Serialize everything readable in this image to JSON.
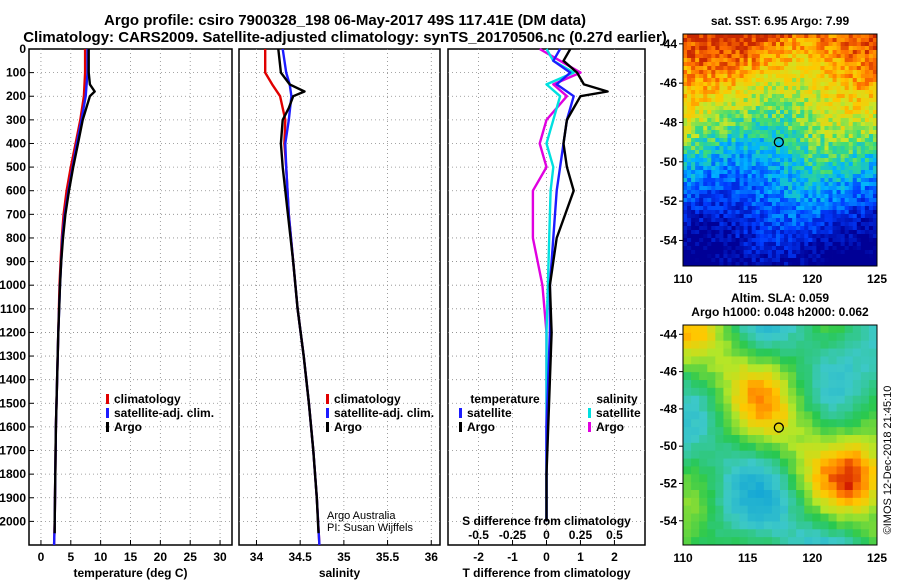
{
  "header": {
    "title_line1": "Argo profile: csiro 7900328_198 06-May-2017 49S 117.41E (DM data)",
    "title_line2": "Climatology: CARS2009. Satellite-adjusted climatology: synTS_20170506.nc (0.27d earlier)"
  },
  "colors": {
    "climatology": "#e00000",
    "satellite": "#1c1cff",
    "argo": "#000000",
    "s_satellite": "#00e0e0",
    "s_argo": "#e000e0"
  },
  "chart_data": [
    {
      "type": "line",
      "name": "temperature",
      "xlabel": "temperature (deg C)",
      "xticks": [
        "0",
        "5",
        "10",
        "15",
        "20",
        "25",
        "30"
      ],
      "xlim": [
        -2,
        32
      ],
      "ylim": [
        0,
        2100
      ],
      "yticks": [
        "0",
        "100",
        "200",
        "300",
        "400",
        "500",
        "600",
        "700",
        "800",
        "900",
        "1000",
        "1100",
        "1200",
        "1300",
        "1400",
        "1500",
        "1600",
        "1700",
        "1800",
        "1900",
        "2000"
      ],
      "legend": [
        "climatology",
        "satellite-adj. clim.",
        "Argo"
      ],
      "series": [
        {
          "name": "climatology",
          "depth": [
            0,
            100,
            200,
            300,
            400,
            500,
            600,
            700,
            800,
            900,
            1000,
            1200,
            1400,
            1600,
            1800,
            2000,
            2100
          ],
          "values": [
            7.4,
            7.4,
            7.2,
            6.6,
            5.8,
            5.0,
            4.3,
            3.8,
            3.5,
            3.3,
            3.1,
            2.9,
            2.7,
            2.5,
            2.4,
            2.3,
            2.2
          ]
        },
        {
          "name": "satellite-adj. clim.",
          "depth": [
            0,
            100,
            200,
            300,
            400,
            500,
            600,
            700,
            800,
            900,
            1000,
            1200,
            1400,
            1600,
            1800,
            2000,
            2100
          ],
          "values": [
            7.8,
            7.8,
            7.5,
            6.8,
            6.0,
            5.3,
            4.6,
            4.0,
            3.6,
            3.4,
            3.2,
            2.9,
            2.7,
            2.5,
            2.4,
            2.3,
            2.2
          ]
        },
        {
          "name": "Argo",
          "depth": [
            0,
            100,
            150,
            180,
            200,
            250,
            300,
            400,
            500,
            600,
            700,
            800,
            900,
            1000,
            1200,
            1400,
            1600,
            1800,
            2000,
            2050
          ],
          "values": [
            8.0,
            8.0,
            8.2,
            9.0,
            8.2,
            7.6,
            7.0,
            6.2,
            5.4,
            4.7,
            4.1,
            3.7,
            3.4,
            3.2,
            2.9,
            2.7,
            2.5,
            2.4,
            2.3,
            2.3
          ]
        }
      ]
    },
    {
      "type": "line",
      "name": "salinity",
      "xlabel": "salinity",
      "xticks": [
        "34",
        "34.5",
        "35",
        "35.5",
        "36"
      ],
      "xlim": [
        33.8,
        36.1
      ],
      "ylim": [
        0,
        2100
      ],
      "legend": [
        "climatology",
        "satellite-adj. clim.",
        "Argo"
      ],
      "credit1": "Argo Australia",
      "credit2": "PI: Susan Wijffels",
      "series": [
        {
          "name": "climatology",
          "depth": [
            0,
            100,
            150,
            200,
            300,
            400,
            500,
            700,
            900,
            1100,
            1300,
            1500,
            1700,
            1900,
            2100
          ],
          "values": [
            34.1,
            34.1,
            34.18,
            34.27,
            34.33,
            34.32,
            34.34,
            34.37,
            34.42,
            34.47,
            34.54,
            34.6,
            34.65,
            34.69,
            34.72
          ]
        },
        {
          "name": "satellite-adj. clim.",
          "depth": [
            0,
            100,
            150,
            200,
            300,
            400,
            500,
            700,
            900,
            1100,
            1300,
            1500,
            1700,
            1900,
            2100
          ],
          "values": [
            34.3,
            34.34,
            34.38,
            34.4,
            34.37,
            34.33,
            34.34,
            34.37,
            34.42,
            34.47,
            34.54,
            34.6,
            34.65,
            34.69,
            34.72
          ]
        },
        {
          "name": "Argo",
          "depth": [
            0,
            100,
            150,
            180,
            200,
            250,
            300,
            400,
            500,
            700,
            900,
            1100,
            1300,
            1500,
            1700,
            1900,
            2050
          ],
          "values": [
            34.25,
            34.28,
            34.38,
            34.55,
            34.42,
            34.37,
            34.3,
            34.28,
            34.3,
            34.36,
            34.42,
            34.47,
            34.54,
            34.6,
            34.65,
            34.69,
            34.71
          ]
        }
      ]
    },
    {
      "type": "line",
      "name": "difference",
      "xlabel": "T difference from climatology",
      "xlabel_top": "S difference from climatology",
      "xticks": [
        "-2",
        "-1",
        "0",
        "1",
        "2"
      ],
      "xticks_top": [
        "-0.5",
        "-0.25",
        "0",
        "0.25",
        "0.5"
      ],
      "xlim": [
        -2.9,
        2.9
      ],
      "ylim": [
        0,
        2100
      ],
      "legend_temp_title": "temperature",
      "legend_sal_title": "salinity",
      "legend_temp": [
        "satellite",
        "Argo"
      ],
      "legend_sal": [
        "satellite",
        "Argo"
      ],
      "series": [
        {
          "name": "T satellite",
          "depth": [
            0,
            50,
            100,
            150,
            200,
            300,
            400,
            500,
            600,
            800,
            1000,
            1200,
            1400,
            1600,
            1800,
            2000
          ],
          "values": [
            0.4,
            0.2,
            0.7,
            0.3,
            0.8,
            0.6,
            0.5,
            0.4,
            0.3,
            0.2,
            0.1,
            0.1,
            0.05,
            0.0,
            0.0,
            0.0
          ]
        },
        {
          "name": "T Argo",
          "depth": [
            0,
            50,
            100,
            150,
            180,
            200,
            250,
            300,
            400,
            500,
            600,
            800,
            1000,
            1200,
            1400,
            1600,
            1800,
            2000
          ],
          "values": [
            0.7,
            0.5,
            0.9,
            1.1,
            1.8,
            1.0,
            0.8,
            0.6,
            0.5,
            0.6,
            0.8,
            0.3,
            0.1,
            0.15,
            0.1,
            0.05,
            0.0,
            0.0
          ]
        },
        {
          "name": "S satellite",
          "depth": [
            0,
            50,
            100,
            150,
            200,
            300,
            400,
            500,
            600,
            800,
            1000,
            1200,
            1400,
            1600,
            1800,
            2000
          ],
          "values": [
            0.0,
            0.05,
            0.2,
            0.0,
            0.1,
            0.05,
            0.0,
            0.05,
            0.03,
            0.02,
            0.01,
            0.0,
            0.0,
            0.0,
            0.0,
            0.0
          ]
        },
        {
          "name": "S Argo",
          "depth": [
            0,
            50,
            100,
            150,
            200,
            300,
            400,
            500,
            600,
            800,
            1000,
            1200,
            1400,
            1600,
            1800,
            2000
          ],
          "values": [
            -0.05,
            0.1,
            0.25,
            0.05,
            0.15,
            0.0,
            -0.05,
            0.0,
            -0.1,
            -0.1,
            -0.03,
            0.0,
            0.0,
            0.0,
            0.0,
            0.0
          ]
        }
      ]
    }
  ],
  "maps": {
    "sst_title": "sat. SST: 6.95 Argo: 7.99",
    "sla_title1": "Altim. SLA: 0.059",
    "sla_title2": "Argo h1000: 0.048 h2000: 0.062",
    "xticks": [
      "110",
      "115",
      "120",
      "125"
    ],
    "yticks": [
      "-44",
      "-46",
      "-48",
      "-50",
      "-52",
      "-54"
    ],
    "marker_lon": 117.41,
    "marker_lat": -49.0,
    "lon_range": [
      110,
      125
    ],
    "lat_range": [
      -43.5,
      -55.3
    ],
    "credit": "©IMOS 12-Dec-2018 21:45:10"
  }
}
